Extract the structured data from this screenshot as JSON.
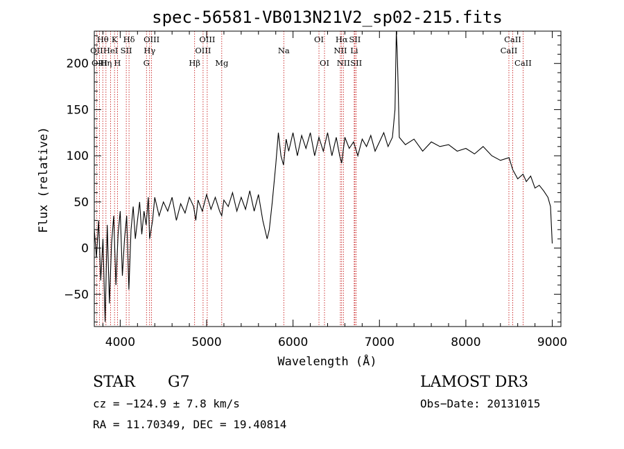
{
  "chart_data": {
    "type": "line",
    "title": "spec-56581-VB013N21V2_sp02-215.fits",
    "xlabel": "Wavelength (Å)",
    "ylabel": "Flux (relative)",
    "xlim": [
      3700,
      9100
    ],
    "ylim": [
      -85,
      235
    ],
    "xticks": [
      {
        "value": 4000,
        "label": "4000"
      },
      {
        "value": 5000,
        "label": "5000"
      },
      {
        "value": 6000,
        "label": "6000"
      },
      {
        "value": 7000,
        "label": "7000"
      },
      {
        "value": 8000,
        "label": "8000"
      },
      {
        "value": 9000,
        "label": "9000"
      }
    ],
    "yticks": [
      {
        "value": -50,
        "label": "−50"
      },
      {
        "value": 0,
        "label": "0"
      },
      {
        "value": 50,
        "label": "50"
      },
      {
        "value": 100,
        "label": "100"
      },
      {
        "value": 150,
        "label": "150"
      },
      {
        "value": 200,
        "label": "200"
      }
    ],
    "line_color": "#000000",
    "marker_color": "#c00000",
    "spectrum_points": [
      [
        3700,
        20
      ],
      [
        3725,
        -10
      ],
      [
        3750,
        30
      ],
      [
        3775,
        -35
      ],
      [
        3800,
        10
      ],
      [
        3825,
        -80
      ],
      [
        3850,
        25
      ],
      [
        3875,
        -60
      ],
      [
        3900,
        5
      ],
      [
        3925,
        35
      ],
      [
        3950,
        -40
      ],
      [
        3975,
        15
      ],
      [
        4000,
        40
      ],
      [
        4025,
        -30
      ],
      [
        4050,
        10
      ],
      [
        4075,
        35
      ],
      [
        4100,
        -45
      ],
      [
        4125,
        20
      ],
      [
        4150,
        45
      ],
      [
        4175,
        10
      ],
      [
        4200,
        30
      ],
      [
        4225,
        50
      ],
      [
        4250,
        15
      ],
      [
        4275,
        40
      ],
      [
        4300,
        25
      ],
      [
        4325,
        55
      ],
      [
        4340,
        10
      ],
      [
        4375,
        30
      ],
      [
        4400,
        55
      ],
      [
        4450,
        35
      ],
      [
        4500,
        50
      ],
      [
        4550,
        40
      ],
      [
        4600,
        55
      ],
      [
        4650,
        30
      ],
      [
        4700,
        48
      ],
      [
        4750,
        38
      ],
      [
        4800,
        55
      ],
      [
        4850,
        45
      ],
      [
        4875,
        30
      ],
      [
        4900,
        52
      ],
      [
        4950,
        40
      ],
      [
        5000,
        58
      ],
      [
        5050,
        42
      ],
      [
        5100,
        55
      ],
      [
        5150,
        40
      ],
      [
        5175,
        35
      ],
      [
        5200,
        52
      ],
      [
        5250,
        45
      ],
      [
        5300,
        60
      ],
      [
        5350,
        40
      ],
      [
        5400,
        55
      ],
      [
        5450,
        42
      ],
      [
        5500,
        62
      ],
      [
        5550,
        40
      ],
      [
        5600,
        58
      ],
      [
        5650,
        30
      ],
      [
        5700,
        10
      ],
      [
        5725,
        20
      ],
      [
        5760,
        50
      ],
      [
        5800,
        90
      ],
      [
        5830,
        125
      ],
      [
        5860,
        100
      ],
      [
        5890,
        90
      ],
      [
        5920,
        118
      ],
      [
        5950,
        105
      ],
      [
        6000,
        125
      ],
      [
        6050,
        100
      ],
      [
        6100,
        122
      ],
      [
        6150,
        108
      ],
      [
        6200,
        125
      ],
      [
        6250,
        100
      ],
      [
        6300,
        120
      ],
      [
        6350,
        105
      ],
      [
        6400,
        125
      ],
      [
        6450,
        100
      ],
      [
        6500,
        120
      ],
      [
        6540,
        100
      ],
      [
        6563,
        92
      ],
      [
        6600,
        120
      ],
      [
        6650,
        108
      ],
      [
        6700,
        115
      ],
      [
        6750,
        100
      ],
      [
        6800,
        118
      ],
      [
        6850,
        110
      ],
      [
        6900,
        122
      ],
      [
        6950,
        105
      ],
      [
        7000,
        115
      ],
      [
        7050,
        125
      ],
      [
        7100,
        110
      ],
      [
        7150,
        120
      ],
      [
        7180,
        150
      ],
      [
        7195,
        235
      ],
      [
        7205,
        215
      ],
      [
        7215,
        180
      ],
      [
        7230,
        120
      ],
      [
        7300,
        112
      ],
      [
        7400,
        118
      ],
      [
        7500,
        105
      ],
      [
        7600,
        115
      ],
      [
        7700,
        110
      ],
      [
        7800,
        112
      ],
      [
        7900,
        105
      ],
      [
        8000,
        108
      ],
      [
        8100,
        102
      ],
      [
        8200,
        110
      ],
      [
        8300,
        100
      ],
      [
        8400,
        95
      ],
      [
        8500,
        98
      ],
      [
        8542,
        85
      ],
      [
        8600,
        75
      ],
      [
        8662,
        80
      ],
      [
        8700,
        72
      ],
      [
        8750,
        78
      ],
      [
        8800,
        65
      ],
      [
        8850,
        68
      ],
      [
        8900,
        62
      ],
      [
        8950,
        55
      ],
      [
        8980,
        45
      ],
      [
        9000,
        5
      ]
    ],
    "spectral_lines": [
      {
        "label": "Hθ",
        "wavelength": 3798,
        "row": 1
      },
      {
        "label": "OII",
        "wavelength": 3727,
        "row": 2
      },
      {
        "label": "OIII",
        "wavelength": 3760,
        "row": 3
      },
      {
        "label": "Hη",
        "wavelength": 3835,
        "row": 3
      },
      {
        "label": "K",
        "wavelength": 3934,
        "row": 1
      },
      {
        "label": "HeI",
        "wavelength": 3889,
        "row": 2
      },
      {
        "label": "SII",
        "wavelength": 4070,
        "row": 2
      },
      {
        "label": "H",
        "wavelength": 3968,
        "row": 3
      },
      {
        "label": "Hδ",
        "wavelength": 4102,
        "row": 1
      },
      {
        "label": "OIII",
        "wavelength": 4363,
        "row": 1
      },
      {
        "label": "Hγ",
        "wavelength": 4340,
        "row": 2
      },
      {
        "label": "G",
        "wavelength": 4304,
        "row": 3
      },
      {
        "label": "OIII",
        "wavelength": 5007,
        "row": 1
      },
      {
        "label": "OIII",
        "wavelength": 4959,
        "row": 2
      },
      {
        "label": "Hβ",
        "wavelength": 4861,
        "row": 3
      },
      {
        "label": "Mg",
        "wavelength": 5175,
        "row": 3
      },
      {
        "label": "Na",
        "wavelength": 5893,
        "row": 2
      },
      {
        "label": "OI",
        "wavelength": 6300,
        "row": 1
      },
      {
        "label": "OI",
        "wavelength": 6364,
        "row": 3
      },
      {
        "label": "Hα",
        "wavelength": 6563,
        "row": 1
      },
      {
        "label": "SII",
        "wavelength": 6716,
        "row": 1
      },
      {
        "label": "NII",
        "wavelength": 6548,
        "row": 2
      },
      {
        "label": "Li",
        "wavelength": 6708,
        "row": 2
      },
      {
        "label": "NII",
        "wavelength": 6583,
        "row": 3
      },
      {
        "label": "SII",
        "wavelength": 6731,
        "row": 3
      },
      {
        "label": "CaII",
        "wavelength": 8542,
        "row": 1
      },
      {
        "label": "CaII",
        "wavelength": 8498,
        "row": 2
      },
      {
        "label": "CaII",
        "wavelength": 8662,
        "row": 3
      }
    ]
  },
  "info": {
    "object_class": "STAR",
    "subclass": "G7",
    "survey": "LAMOST DR3",
    "redshift_line": "cz = −124.9 ± 7.8 km/s",
    "obs_date": "Obs−Date: 20131015",
    "coords_line": "RA =  11.70349, DEC =  19.40814"
  }
}
